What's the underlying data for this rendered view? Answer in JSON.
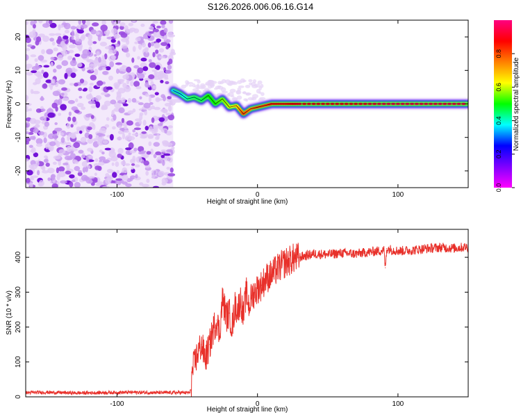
{
  "figure_title": "S126.2026.006.06.16.G14",
  "chart_data": [
    {
      "type": "heatmap",
      "title": "S126.2026.006.06.16.G14",
      "xlabel": "Height of straight line (km)",
      "ylabel": "Frequency (Hz)",
      "xlim": [
        -165,
        150
      ],
      "ylim": [
        -25,
        25
      ],
      "x_ticks": [
        -100,
        0,
        100
      ],
      "y_ticks": [
        -20,
        -10,
        0,
        10,
        20
      ],
      "x_tick_labels": [
        "-100",
        "0",
        "100"
      ],
      "y_tick_labels": [
        "-20",
        "-10",
        "0",
        "10",
        "20"
      ],
      "colorbar": {
        "label": "Normalized spectral amplitude",
        "range": [
          0,
          1
        ],
        "ticks": [
          0.0,
          0.2,
          0.4,
          0.6,
          0.8
        ],
        "tick_labels": [
          "0.0",
          "0.2",
          "0.4",
          "0.6",
          "0.8"
        ],
        "colormap": [
          "#ff00ff",
          "#7f00ff",
          "#0000ff",
          "#00ffff",
          "#00ff00",
          "#ffff00",
          "#ff8000",
          "#ff0000",
          "#ff0080"
        ]
      },
      "noise_region_x": [
        -165,
        -60
      ],
      "ridge": {
        "x": [
          -60,
          -55,
          -50,
          -45,
          -40,
          -35,
          -30,
          -25,
          -20,
          -15,
          -10,
          -5,
          0,
          5,
          10,
          20,
          30,
          50,
          70,
          90,
          110,
          130,
          150
        ],
        "y": [
          4,
          3,
          1.5,
          2,
          1,
          2.5,
          0,
          1.5,
          -1,
          -0.5,
          -3,
          -1.5,
          -1,
          -0.5,
          0,
          0,
          0,
          0,
          0,
          0,
          0,
          0,
          0
        ],
        "amplitude": [
          0.35,
          0.35,
          0.4,
          0.45,
          0.45,
          0.5,
          0.5,
          0.55,
          0.6,
          0.65,
          0.8,
          0.75,
          0.8,
          0.8,
          0.85,
          0.85,
          0.9,
          0.9,
          0.9,
          0.95,
          0.95,
          0.95,
          0.95
        ]
      }
    },
    {
      "type": "line",
      "xlabel": "Height of straight line (km)",
      "ylabel": "SNR (10 * v/v)",
      "xlim": [
        -165,
        150
      ],
      "ylim": [
        0,
        480
      ],
      "x_ticks": [
        -100,
        0,
        100
      ],
      "y_ticks": [
        0,
        100,
        200,
        300,
        400
      ],
      "x_tick_labels": [
        "-100",
        "0",
        "100"
      ],
      "y_tick_labels": [
        "0",
        "100",
        "200",
        "300",
        "400"
      ],
      "series": [
        {
          "name": "SNR",
          "color": "#e8302a",
          "x": [
            -165,
            -150,
            -130,
            -110,
            -90,
            -70,
            -55,
            -48,
            -46,
            -43,
            -40,
            -37,
            -34,
            -31,
            -29,
            -27,
            -25,
            -22,
            -20,
            -18,
            -16,
            -14,
            -12,
            -10,
            -8,
            -6,
            -4,
            -2,
            0,
            3,
            6,
            10,
            15,
            20,
            25,
            30,
            35,
            40,
            50,
            60,
            70,
            80,
            90,
            91,
            92,
            100,
            110,
            120,
            130,
            140,
            150
          ],
          "y": [
            12,
            13,
            11,
            12,
            13,
            12,
            12,
            12,
            80,
            120,
            150,
            110,
            150,
            200,
            220,
            180,
            280,
            230,
            240,
            200,
            260,
            250,
            280,
            230,
            300,
            260,
            290,
            300,
            310,
            320,
            340,
            350,
            370,
            385,
            395,
            400,
            405,
            410,
            408,
            412,
            410,
            415,
            420,
            370,
            425,
            418,
            420,
            425,
            428,
            426,
            430
          ]
        }
      ]
    }
  ]
}
